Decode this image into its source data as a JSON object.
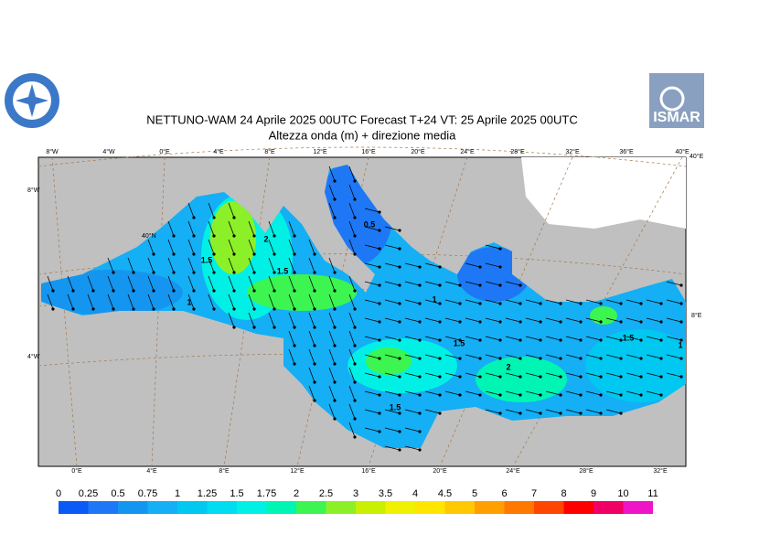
{
  "header": {
    "title": "NETTUNO-WAM  24   Aprile  2025 00UTC Forecast T+24 VT: 25   Aprile  2025 00UTC",
    "subtitle": "Altezza onda (m) + direzione media",
    "logo_right": "ISMAR"
  },
  "map": {
    "top_labels": [
      "8°W",
      "4°W",
      "0°E",
      "4°E",
      "8°E",
      "12°E",
      "16°E",
      "20°E",
      "24°E",
      "28°E",
      "32°E",
      "36°E",
      "40°E"
    ],
    "bottom_labels": [
      "0°E",
      "4°E",
      "8°E",
      "12°E",
      "16°E",
      "20°E",
      "24°E",
      "28°E",
      "32°E"
    ],
    "left_labels": [
      "8°W",
      "40°N",
      "4°W"
    ],
    "right_labels": [
      "40°E",
      "8°E"
    ],
    "contour_labels": [
      "0.5",
      "1.5",
      "1.5",
      "2",
      "1",
      "1",
      "1.5",
      "2",
      "1.5",
      "1.5",
      "1"
    ]
  },
  "colorbar": {
    "levels": [
      0,
      0.25,
      0.5,
      0.75,
      1,
      1.25,
      1.5,
      1.75,
      2,
      2.5,
      3,
      3.5,
      4,
      4.5,
      5,
      6,
      7,
      8,
      9,
      10,
      11
    ],
    "colors": [
      "#0a5af5",
      "#1e78f5",
      "#1496f0",
      "#14aff5",
      "#00c8f0",
      "#00dcf0",
      "#00f0e6",
      "#00f5b4",
      "#3cf550",
      "#8cf028",
      "#c8f000",
      "#f0f000",
      "#ffe600",
      "#ffc800",
      "#ffa000",
      "#ff7800",
      "#ff4600",
      "#ff0000",
      "#f00064",
      "#f014c8"
    ]
  }
}
